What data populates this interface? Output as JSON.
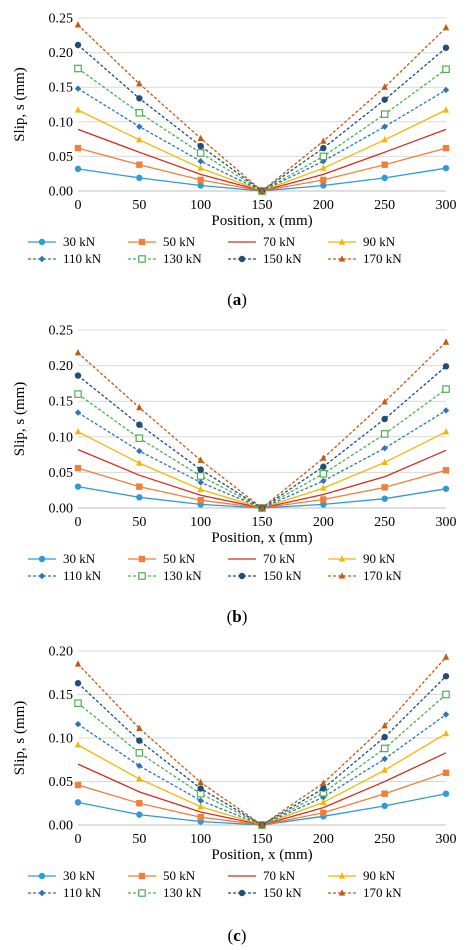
{
  "figure": {
    "legend": [
      {
        "label": "30 kN",
        "color": "#2E9BD6",
        "dash": false,
        "marker": "circle"
      },
      {
        "label": "50 kN",
        "color": "#F07F3C",
        "dash": false,
        "marker": "square"
      },
      {
        "label": "70 kN",
        "color": "#D62C1F",
        "dash": false,
        "marker": "none"
      },
      {
        "label": "90 kN",
        "color": "#F2B705",
        "dash": false,
        "marker": "triangle"
      },
      {
        "label": "110 kN",
        "color": "#2E75B6",
        "dash": true,
        "marker": "diamond"
      },
      {
        "label": "130 kN",
        "color": "#4CAF50",
        "dash": true,
        "marker": "square-open"
      },
      {
        "label": "150 kN",
        "color": "#1F4E79",
        "dash": true,
        "marker": "circle"
      },
      {
        "label": "170 kN",
        "color": "#C55A11",
        "dash": true,
        "marker": "triangle"
      }
    ]
  },
  "chart_data": [
    {
      "type": "line",
      "caption": "(a)",
      "xlabel": "Position, x (mm)",
      "ylabel": "Slip, s (mm)",
      "x": [
        0,
        50,
        100,
        150,
        200,
        250,
        300
      ],
      "xlim": [
        0,
        300
      ],
      "ylim": [
        0,
        0.25
      ],
      "yticks": [
        0,
        0.05,
        0.1,
        0.15,
        0.2,
        0.25
      ],
      "ytick_labels": [
        "0.00",
        "0.05",
        "0.10",
        "0.15",
        "0.20",
        "0.25"
      ],
      "xticks": [
        0,
        50,
        100,
        150,
        200,
        250,
        300
      ],
      "grid": true,
      "legend_position": "bottom",
      "series": [
        {
          "name": "30 kN",
          "values": [
            0.032,
            0.019,
            0.008,
            0.0,
            0.008,
            0.019,
            0.033
          ]
        },
        {
          "name": "50 kN",
          "values": [
            0.062,
            0.038,
            0.016,
            0.0,
            0.016,
            0.038,
            0.062
          ]
        },
        {
          "name": "70 kN",
          "values": [
            0.089,
            0.056,
            0.024,
            0.0,
            0.024,
            0.056,
            0.089
          ]
        },
        {
          "name": "90 kN",
          "values": [
            0.117,
            0.074,
            0.033,
            0.0,
            0.033,
            0.074,
            0.117
          ]
        },
        {
          "name": "110 kN",
          "values": [
            0.148,
            0.093,
            0.043,
            0.0,
            0.043,
            0.093,
            0.146
          ]
        },
        {
          "name": "130 kN",
          "values": [
            0.177,
            0.113,
            0.055,
            0.0,
            0.05,
            0.111,
            0.176
          ]
        },
        {
          "name": "150 kN",
          "values": [
            0.211,
            0.134,
            0.065,
            0.0,
            0.062,
            0.132,
            0.207
          ]
        },
        {
          "name": "170 kN",
          "values": [
            0.24,
            0.155,
            0.076,
            0.0,
            0.072,
            0.15,
            0.236
          ]
        }
      ]
    },
    {
      "type": "line",
      "caption": "(b)",
      "xlabel": "Position, x (mm)",
      "ylabel": "Slip, s (mm)",
      "x": [
        0,
        50,
        100,
        150,
        200,
        250,
        300
      ],
      "xlim": [
        0,
        300
      ],
      "ylim": [
        0,
        0.25
      ],
      "yticks": [
        0,
        0.05,
        0.1,
        0.15,
        0.2,
        0.25
      ],
      "ytick_labels": [
        "0.00",
        "0.05",
        "0.10",
        "0.15",
        "0.20",
        "0.25"
      ],
      "xticks": [
        0,
        50,
        100,
        150,
        200,
        250,
        300
      ],
      "grid": true,
      "legend_position": "bottom",
      "series": [
        {
          "name": "30 kN",
          "values": [
            0.03,
            0.015,
            0.005,
            0.0,
            0.005,
            0.013,
            0.027
          ]
        },
        {
          "name": "50 kN",
          "values": [
            0.056,
            0.03,
            0.011,
            0.0,
            0.012,
            0.029,
            0.053
          ]
        },
        {
          "name": "70 kN",
          "values": [
            0.082,
            0.046,
            0.018,
            0.0,
            0.019,
            0.044,
            0.081
          ]
        },
        {
          "name": "90 kN",
          "values": [
            0.107,
            0.063,
            0.026,
            0.0,
            0.028,
            0.064,
            0.107
          ]
        },
        {
          "name": "110 kN",
          "values": [
            0.134,
            0.08,
            0.036,
            0.0,
            0.038,
            0.084,
            0.137
          ]
        },
        {
          "name": "130 kN",
          "values": [
            0.16,
            0.098,
            0.045,
            0.0,
            0.048,
            0.104,
            0.167
          ]
        },
        {
          "name": "150 kN",
          "values": [
            0.186,
            0.117,
            0.054,
            0.0,
            0.058,
            0.125,
            0.199
          ]
        },
        {
          "name": "170 kN",
          "values": [
            0.218,
            0.141,
            0.067,
            0.0,
            0.07,
            0.149,
            0.233
          ]
        }
      ]
    },
    {
      "type": "line",
      "caption": "(c)",
      "xlabel": "Position, x (mm)",
      "ylabel": "Slip, s (mm)",
      "x": [
        0,
        50,
        100,
        150,
        200,
        250,
        300
      ],
      "xlim": [
        0,
        300
      ],
      "ylim": [
        0,
        0.2
      ],
      "yticks": [
        0,
        0.05,
        0.1,
        0.15,
        0.2
      ],
      "ytick_labels": [
        "0.00",
        "0.05",
        "0.10",
        "0.15",
        "0.20"
      ],
      "xticks": [
        0,
        50,
        100,
        150,
        200,
        250,
        300
      ],
      "grid": true,
      "legend_position": "bottom",
      "series": [
        {
          "name": "30 kN",
          "values": [
            0.026,
            0.012,
            0.004,
            0.0,
            0.01,
            0.022,
            0.036
          ]
        },
        {
          "name": "50 kN",
          "values": [
            0.046,
            0.025,
            0.009,
            0.0,
            0.014,
            0.036,
            0.06
          ]
        },
        {
          "name": "70 kN",
          "values": [
            0.07,
            0.038,
            0.015,
            0.0,
            0.02,
            0.05,
            0.083
          ]
        },
        {
          "name": "90 kN",
          "values": [
            0.092,
            0.053,
            0.021,
            0.0,
            0.026,
            0.063,
            0.105
          ]
        },
        {
          "name": "110 kN",
          "values": [
            0.116,
            0.068,
            0.028,
            0.0,
            0.032,
            0.076,
            0.127
          ]
        },
        {
          "name": "130 kN",
          "values": [
            0.14,
            0.083,
            0.036,
            0.0,
            0.037,
            0.088,
            0.15
          ]
        },
        {
          "name": "150 kN",
          "values": [
            0.163,
            0.097,
            0.042,
            0.0,
            0.042,
            0.101,
            0.171
          ]
        },
        {
          "name": "170 kN",
          "values": [
            0.185,
            0.111,
            0.049,
            0.0,
            0.048,
            0.114,
            0.193
          ]
        }
      ]
    }
  ]
}
